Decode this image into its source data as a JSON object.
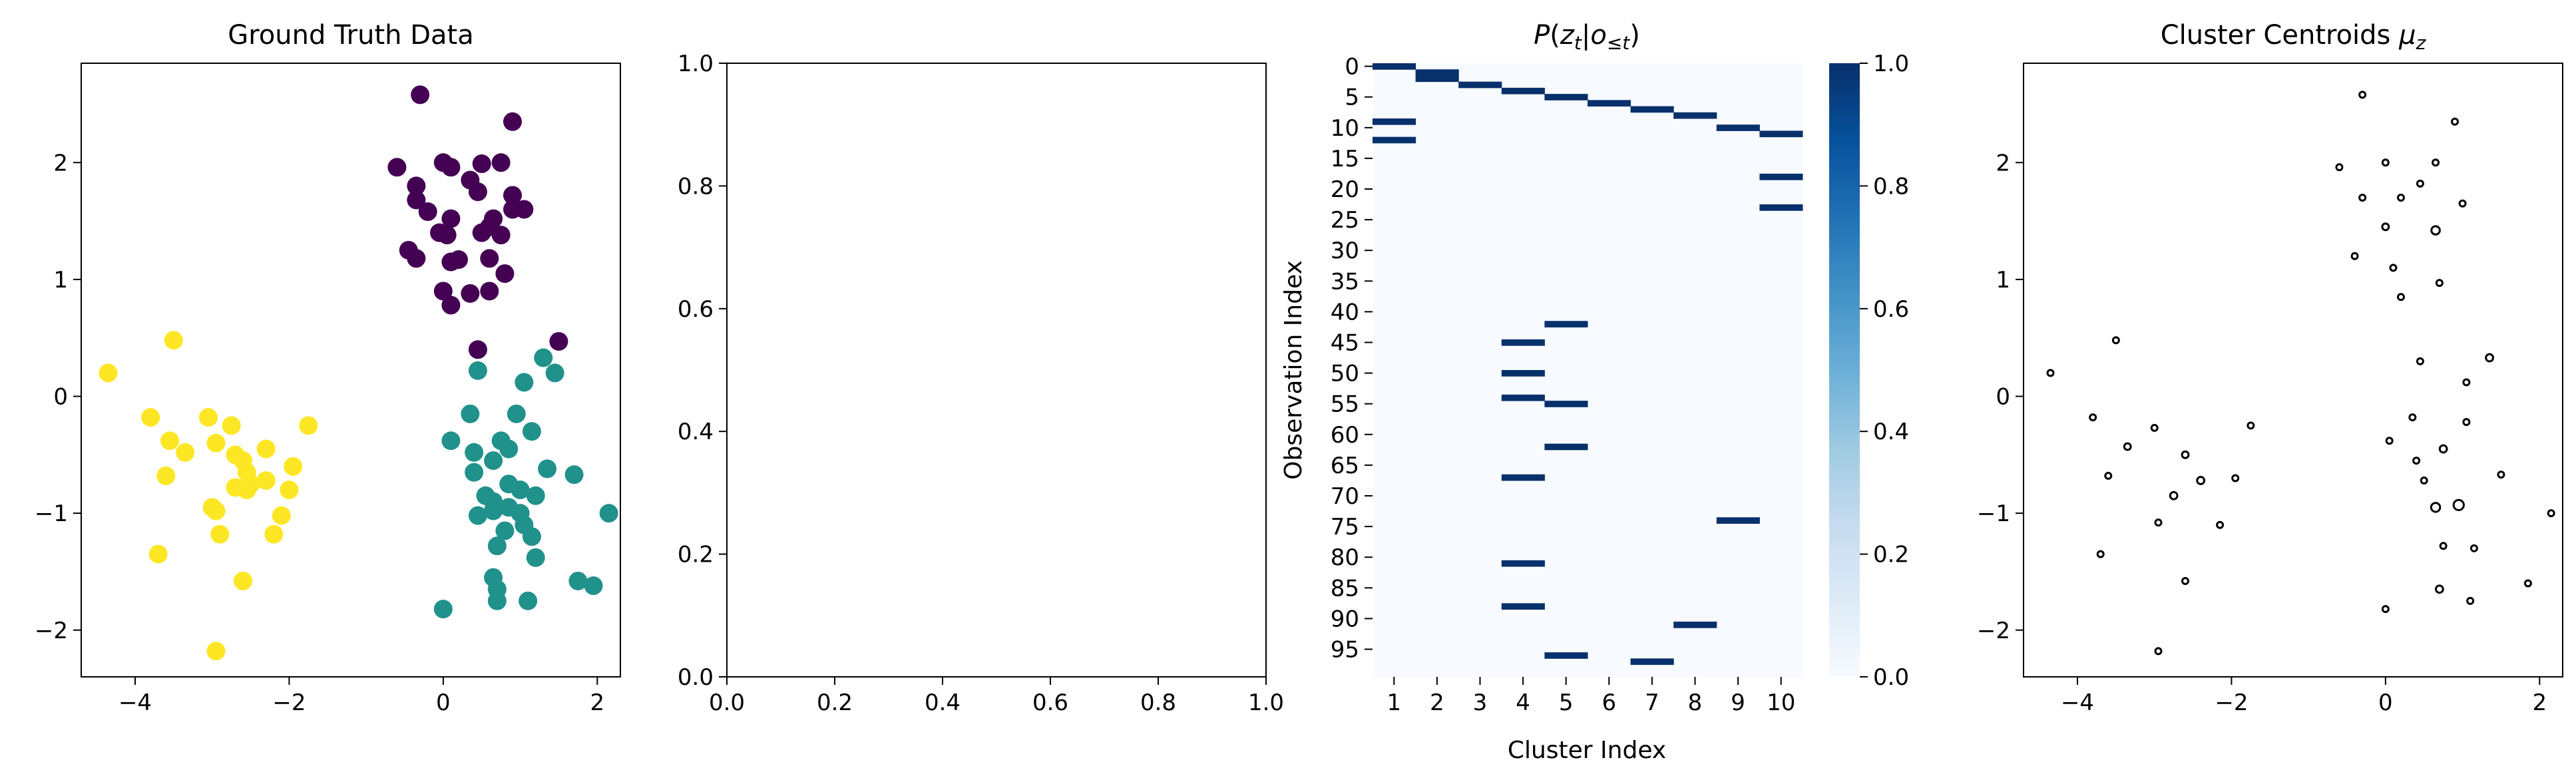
{
  "chart_data": [
    {
      "type": "scatter",
      "title": "Ground Truth Data",
      "xlim": [
        -4.7,
        2.3
      ],
      "ylim": [
        -2.4,
        2.85
      ],
      "xticks": [
        -4,
        -2,
        0,
        2
      ],
      "yticks": [
        -2,
        -1,
        0,
        1,
        2
      ],
      "xtick_labels": [
        "−4",
        "−2",
        "0",
        "2"
      ],
      "ytick_labels": [
        "−2",
        "−1",
        "0",
        "1",
        "2"
      ],
      "series": [
        {
          "color": "#440154",
          "points": [
            [
              -0.3,
              2.58
            ],
            [
              0.9,
              2.35
            ],
            [
              -0.6,
              1.96
            ],
            [
              0,
              2
            ],
            [
              0.1,
              1.96
            ],
            [
              0.5,
              1.99
            ],
            [
              0.75,
              2
            ],
            [
              -0.35,
              1.8
            ],
            [
              0.35,
              1.85
            ],
            [
              -0.35,
              1.68
            ],
            [
              0.45,
              1.75
            ],
            [
              0.9,
              1.72
            ],
            [
              -0.2,
              1.58
            ],
            [
              0.1,
              1.52
            ],
            [
              0.65,
              1.52
            ],
            [
              0.9,
              1.6
            ],
            [
              1.05,
              1.6
            ],
            [
              -0.05,
              1.4
            ],
            [
              0.05,
              1.38
            ],
            [
              0.5,
              1.4
            ],
            [
              0.6,
              1.45
            ],
            [
              0.75,
              1.38
            ],
            [
              -0.45,
              1.25
            ],
            [
              -0.35,
              1.18
            ],
            [
              0.1,
              1.15
            ],
            [
              0.2,
              1.17
            ],
            [
              0.6,
              1.18
            ],
            [
              0.8,
              1.05
            ],
            [
              0,
              0.9
            ],
            [
              0.1,
              0.78
            ],
            [
              0.35,
              0.88
            ],
            [
              0.6,
              0.9
            ],
            [
              0.45,
              0.4
            ],
            [
              1.5,
              0.47
            ]
          ]
        },
        {
          "color": "#21918c",
          "points": [
            [
              1.3,
              0.33
            ],
            [
              0.45,
              0.22
            ],
            [
              1.45,
              0.2
            ],
            [
              1.05,
              0.12
            ],
            [
              0.35,
              -0.15
            ],
            [
              0.95,
              -0.15
            ],
            [
              0.1,
              -0.38
            ],
            [
              0.75,
              -0.38
            ],
            [
              1.15,
              -0.3
            ],
            [
              0.4,
              -0.48
            ],
            [
              0.65,
              -0.55
            ],
            [
              0.85,
              -0.45
            ],
            [
              0.4,
              -0.65
            ],
            [
              1.35,
              -0.62
            ],
            [
              1.7,
              -0.67
            ],
            [
              0.55,
              -0.85
            ],
            [
              0.65,
              -0.9
            ],
            [
              0.85,
              -0.75
            ],
            [
              1,
              -0.8
            ],
            [
              1.2,
              -0.85
            ],
            [
              0.45,
              -1.02
            ],
            [
              0.65,
              -0.98
            ],
            [
              0.85,
              -0.95
            ],
            [
              1,
              -1
            ],
            [
              1.05,
              -1.1
            ],
            [
              2.15,
              -1
            ],
            [
              0.8,
              -1.15
            ],
            [
              1.15,
              -1.2
            ],
            [
              0.7,
              -1.28
            ],
            [
              1.2,
              -1.38
            ],
            [
              0.65,
              -1.55
            ],
            [
              1.75,
              -1.58
            ],
            [
              1.95,
              -1.62
            ],
            [
              0.7,
              -1.65
            ],
            [
              0.7,
              -1.75
            ],
            [
              1.1,
              -1.75
            ],
            [
              0,
              -1.82
            ]
          ]
        },
        {
          "color": "#fde725",
          "points": [
            [
              -4.35,
              0.2
            ],
            [
              -3.5,
              0.48
            ],
            [
              -3.8,
              -0.18
            ],
            [
              -3.55,
              -0.38
            ],
            [
              -3.35,
              -0.48
            ],
            [
              -3.05,
              -0.18
            ],
            [
              -2.75,
              -0.25
            ],
            [
              -2.95,
              -0.4
            ],
            [
              -1.75,
              -0.25
            ],
            [
              -2.3,
              -0.45
            ],
            [
              -2.7,
              -0.5
            ],
            [
              -2.6,
              -0.55
            ],
            [
              -2.55,
              -0.65
            ],
            [
              -1.95,
              -0.6
            ],
            [
              -3.6,
              -0.68
            ],
            [
              -2.5,
              -0.75
            ],
            [
              -2.7,
              -0.78
            ],
            [
              -2.3,
              -0.72
            ],
            [
              -2.55,
              -0.8
            ],
            [
              -2,
              -0.8
            ],
            [
              -3,
              -0.95
            ],
            [
              -2.95,
              -0.98
            ],
            [
              -2.1,
              -1.02
            ],
            [
              -2.9,
              -1.18
            ],
            [
              -2.2,
              -1.18
            ],
            [
              -3.7,
              -1.35
            ],
            [
              -2.6,
              -1.58
            ],
            [
              -2.95,
              -2.18
            ]
          ]
        }
      ]
    },
    {
      "type": "scatter",
      "title": "",
      "xlim": [
        0,
        1
      ],
      "ylim": [
        0,
        1
      ],
      "xticks": [
        0,
        0.2,
        0.4,
        0.6,
        0.8,
        1
      ],
      "yticks": [
        0,
        0.2,
        0.4,
        0.6,
        0.8,
        1
      ],
      "xtick_labels": [
        "0.0",
        "0.2",
        "0.4",
        "0.6",
        "0.8",
        "1.0"
      ],
      "ytick_labels": [
        "0.0",
        "0.2",
        "0.4",
        "0.6",
        "0.8",
        "1.0"
      ],
      "series": []
    },
    {
      "type": "heatmap",
      "title": "P(z_t | o_≤t)",
      "title_parts": {
        "p": "P",
        "z": "z",
        "t": "t",
        "o": "o",
        "le": "≤",
        "t2": "t"
      },
      "xlabel": "Cluster Index",
      "ylabel": "Observation Index",
      "x_categories": [
        "1",
        "2",
        "3",
        "4",
        "5",
        "6",
        "7",
        "8",
        "9",
        "10"
      ],
      "n_rows": 100,
      "y_tick_rows": [
        0,
        5,
        10,
        15,
        20,
        25,
        30,
        35,
        40,
        45,
        50,
        55,
        60,
        65,
        70,
        75,
        80,
        85,
        90,
        95
      ],
      "y_tick_labels": [
        "0",
        "5",
        "10",
        "15",
        "20",
        "25",
        "30",
        "35",
        "40",
        "45",
        "50",
        "55",
        "60",
        "65",
        "70",
        "75",
        "80",
        "85",
        "90",
        "95"
      ],
      "colormap": "Blues",
      "color_low": "#f7fbff",
      "color_high": "#08306b",
      "colorbar_ticks": [
        0,
        0.2,
        0.4,
        0.6,
        0.8,
        1
      ],
      "colorbar_tick_labels": [
        "0.0",
        "0.2",
        "0.4",
        "0.6",
        "0.8",
        "1.0"
      ],
      "cells": [
        [
          0,
          1,
          1
        ],
        [
          1,
          2,
          1
        ],
        [
          2,
          2,
          1
        ],
        [
          3,
          3,
          1
        ],
        [
          4,
          4,
          1
        ],
        [
          5,
          5,
          1
        ],
        [
          6,
          6,
          1
        ],
        [
          7,
          7,
          1
        ],
        [
          8,
          8,
          1
        ],
        [
          9,
          1,
          1
        ],
        [
          10,
          9,
          1
        ],
        [
          11,
          10,
          1
        ],
        [
          12,
          1,
          1
        ],
        [
          18,
          10,
          1
        ],
        [
          23,
          10,
          1
        ],
        [
          42,
          5,
          1
        ],
        [
          45,
          4,
          1
        ],
        [
          50,
          4,
          1
        ],
        [
          54,
          4,
          1
        ],
        [
          55,
          5,
          1
        ],
        [
          62,
          5,
          1
        ],
        [
          67,
          4,
          1
        ],
        [
          74,
          9,
          1
        ],
        [
          81,
          4,
          1
        ],
        [
          88,
          4,
          1
        ],
        [
          91,
          8,
          1
        ],
        [
          96,
          5,
          1
        ],
        [
          97,
          7,
          1
        ]
      ]
    },
    {
      "type": "scatter",
      "title": "Cluster Centroids",
      "title_math": "μ",
      "title_math_sub": "z",
      "xlim": [
        -4.7,
        2.3
      ],
      "ylim": [
        -2.4,
        2.85
      ],
      "xticks": [
        -4,
        -2,
        0,
        2
      ],
      "yticks": [
        -2,
        -1,
        0,
        1,
        2
      ],
      "xtick_labels": [
        "−4",
        "−2",
        "0",
        "2"
      ],
      "ytick_labels": [
        "−2",
        "−1",
        "0",
        "1",
        "2"
      ],
      "marker": "hollow-circle",
      "color": "#000000",
      "points": [
        [
          -0.3,
          2.58,
          1
        ],
        [
          0.9,
          2.35,
          1
        ],
        [
          -0.6,
          1.96,
          1
        ],
        [
          0,
          2,
          1
        ],
        [
          0.65,
          2,
          1
        ],
        [
          0.45,
          1.82,
          1
        ],
        [
          -0.3,
          1.7,
          1
        ],
        [
          0.2,
          1.7,
          1
        ],
        [
          1,
          1.65,
          1
        ],
        [
          0,
          1.45,
          1.1
        ],
        [
          0.65,
          1.42,
          1.4
        ],
        [
          -0.4,
          1.2,
          1
        ],
        [
          0.1,
          1.1,
          1
        ],
        [
          0.7,
          0.97,
          1
        ],
        [
          0.2,
          0.85,
          1
        ],
        [
          -3.5,
          0.48,
          1
        ],
        [
          1.35,
          0.33,
          1.2
        ],
        [
          0.45,
          0.3,
          1
        ],
        [
          -4.35,
          0.2,
          1
        ],
        [
          1.05,
          0.12,
          1
        ],
        [
          -3.8,
          -0.18,
          1
        ],
        [
          0.35,
          -0.18,
          1
        ],
        [
          1.05,
          -0.22,
          1
        ],
        [
          -1.75,
          -0.25,
          1
        ],
        [
          -3,
          -0.27,
          1
        ],
        [
          0.05,
          -0.38,
          1
        ],
        [
          -3.35,
          -0.43,
          1.1
        ],
        [
          0.75,
          -0.45,
          1.2
        ],
        [
          -2.6,
          -0.5,
          1.1
        ],
        [
          0.4,
          -0.55,
          1
        ],
        [
          -3.6,
          -0.68,
          1
        ],
        [
          -1.95,
          -0.7,
          1
        ],
        [
          -2.4,
          -0.72,
          1.2
        ],
        [
          0.5,
          -0.72,
          1
        ],
        [
          1.5,
          -0.67,
          1
        ],
        [
          -2.75,
          -0.85,
          1.2
        ],
        [
          0.65,
          -0.95,
          1.5
        ],
        [
          0.95,
          -0.93,
          1.7
        ],
        [
          2.15,
          -1,
          1
        ],
        [
          -2.95,
          -1.08,
          1
        ],
        [
          -2.15,
          -1.1,
          1
        ],
        [
          0.75,
          -1.28,
          1
        ],
        [
          1.15,
          -1.3,
          1
        ],
        [
          -3.7,
          -1.35,
          1
        ],
        [
          -2.6,
          -1.58,
          1
        ],
        [
          1.85,
          -1.6,
          1
        ],
        [
          0.7,
          -1.65,
          1.2
        ],
        [
          1.1,
          -1.75,
          1
        ],
        [
          0,
          -1.82,
          1
        ],
        [
          -2.95,
          -2.18,
          1
        ]
      ]
    }
  ]
}
